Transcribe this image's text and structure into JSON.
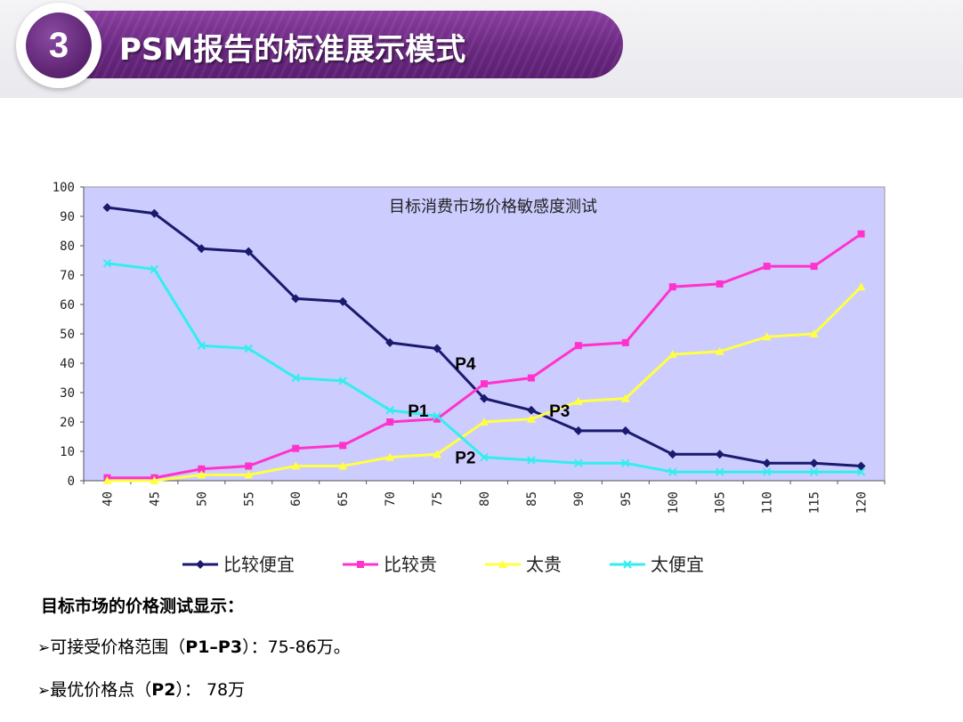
{
  "header": {
    "number": "3",
    "title": "PSM报告的标准展示模式"
  },
  "chart_data": {
    "type": "line",
    "title": "目标消费市场价格敏感度测试",
    "x": [
      40,
      45,
      50,
      55,
      60,
      65,
      70,
      75,
      80,
      85,
      90,
      95,
      100,
      105,
      110,
      115,
      120
    ],
    "ylim": [
      0,
      100
    ],
    "yticks": [
      0,
      10,
      20,
      30,
      40,
      50,
      60,
      70,
      80,
      90,
      100
    ],
    "grid": false,
    "background": "#ccccff",
    "legend_position": "bottom",
    "series": [
      {
        "name": "比较便宜",
        "color": "#1a1a6e",
        "marker": "diamond",
        "values": [
          93,
          91,
          79,
          78,
          62,
          61,
          47,
          45,
          28,
          24,
          17,
          17,
          9,
          9,
          6,
          6,
          5
        ]
      },
      {
        "name": "比较贵",
        "color": "#ff33cc",
        "marker": "square",
        "values": [
          1,
          1,
          4,
          5,
          11,
          12,
          20,
          21,
          33,
          35,
          46,
          47,
          66,
          67,
          73,
          73,
          84
        ]
      },
      {
        "name": "太贵",
        "color": "#ffff44",
        "marker": "triangle",
        "values": [
          0,
          0,
          2,
          2,
          5,
          5,
          8,
          9,
          20,
          21,
          27,
          28,
          43,
          44,
          49,
          50,
          66
        ]
      },
      {
        "name": "太便宜",
        "color": "#33eeee",
        "marker": "x",
        "values": [
          74,
          72,
          46,
          45,
          35,
          34,
          24,
          22,
          8,
          7,
          6,
          6,
          3,
          3,
          3,
          3,
          3
        ]
      }
    ],
    "annotations": [
      {
        "text": "P4",
        "x": 78,
        "y": 40
      },
      {
        "text": "P1",
        "x": 73,
        "y": 24
      },
      {
        "text": "P3",
        "x": 88,
        "y": 24
      },
      {
        "text": "P2",
        "x": 78,
        "y": 8
      }
    ]
  },
  "summary": {
    "heading": "目标市场的价格测试显示：",
    "bullet1_prefix": "可接受价格范围（",
    "bullet1_bold": "P1–P3",
    "bullet1_suffix": "）：75-86万。",
    "bullet2_prefix": "最优价格点（",
    "bullet2_bold": "P2",
    "bullet2_suffix": "）：  78万"
  }
}
